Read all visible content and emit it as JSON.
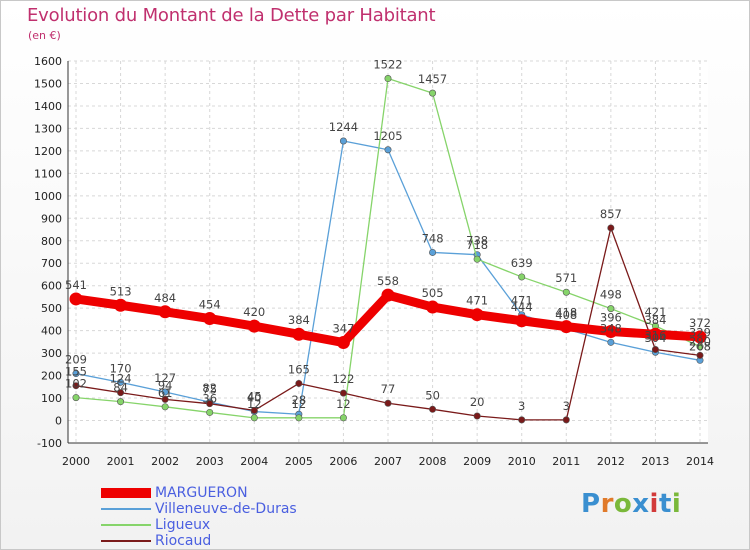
{
  "title": "Evolution du Montant de la Dette par Habitant",
  "unit": "(en €)",
  "logo": {
    "text": "Proxiti",
    "colors": [
      "#3a8fd0",
      "#e07a2a",
      "#7ab83a",
      "#3a8fd0",
      "#d23a3a",
      "#3a8fd0",
      "#7ab83a"
    ]
  },
  "chart_data": {
    "type": "line",
    "title": "Evolution du Montant de la Dette par Habitant",
    "ylabel": "(en €)",
    "xlabel": "",
    "x": [
      "2000",
      "2001",
      "2002",
      "2003",
      "2004",
      "2005",
      "2006",
      "2007",
      "2008",
      "2009",
      "2010",
      "2011",
      "2012",
      "2013",
      "2014"
    ],
    "ylim": [
      -100,
      1600
    ],
    "yticks": [
      -100,
      0,
      100,
      200,
      300,
      400,
      500,
      600,
      700,
      800,
      900,
      1000,
      1100,
      1200,
      1300,
      1400,
      1500,
      1600
    ],
    "grid": true,
    "legend": "bottom-left",
    "series": [
      {
        "name": "MARGUERON",
        "color": "#ee0000",
        "values": [
          541,
          513,
          484,
          454,
          420,
          384,
          347,
          558,
          505,
          471,
          444,
          418,
          396,
          384,
          372
        ]
      },
      {
        "name": "Villeneuve-de-Duras",
        "color": "#5aa0d8",
        "values": [
          209,
          170,
          127,
          82,
          40,
          28,
          1244,
          1205,
          748,
          738,
          471,
          408,
          348,
          304,
          268
        ]
      },
      {
        "name": "Ligueux",
        "color": "#86d46a",
        "values": [
          102,
          84,
          61,
          36,
          12,
          12,
          12,
          1522,
          1457,
          718,
          639,
          571,
          498,
          421,
          329
        ]
      },
      {
        "name": "Riocaud",
        "color": "#7a1a1a",
        "values": [
          155,
          124,
          94,
          75,
          45,
          165,
          122,
          77,
          50,
          20,
          3,
          3,
          857,
          316,
          290
        ]
      }
    ]
  }
}
